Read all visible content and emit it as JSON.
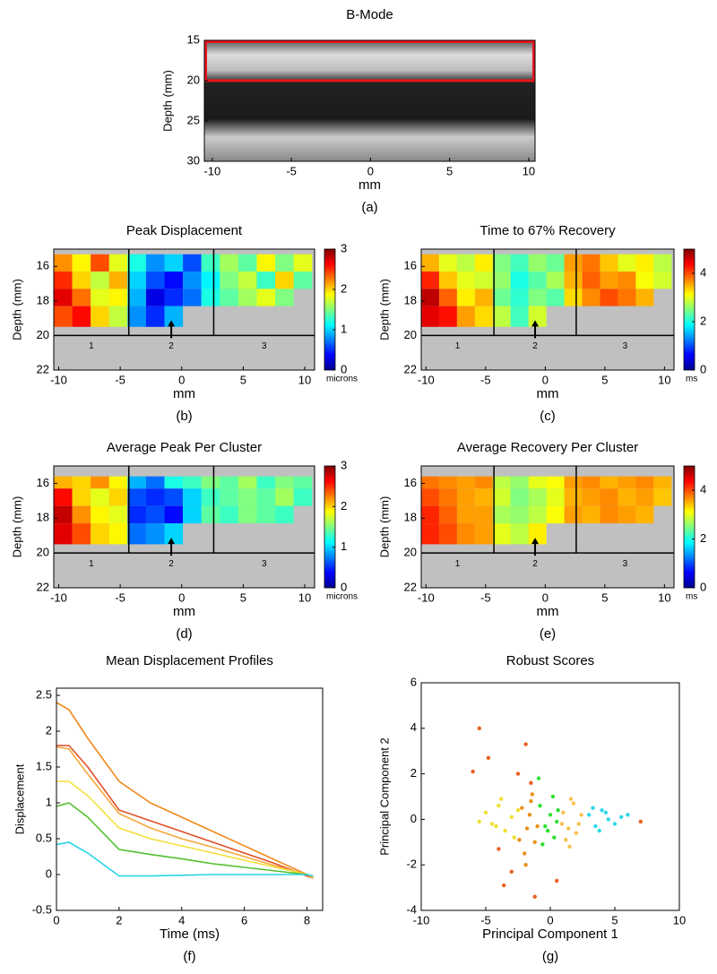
{
  "chart_data": [
    {
      "type": "image",
      "title": "B-Mode",
      "xlabel": "mm",
      "ylabel": "Depth (mm)",
      "panel_label": "(a)",
      "xlim": [
        -10.5,
        10.4
      ],
      "ylim": [
        15,
        30
      ],
      "y_reversed": true,
      "xticks": [
        -10,
        -5,
        0,
        5,
        10
      ],
      "yticks": [
        15,
        20,
        25,
        30
      ],
      "highlight_ylim": [
        15,
        20
      ],
      "highlight_color": "#e8141c"
    },
    {
      "type": "heatmap",
      "title": "Peak Displacement",
      "xlabel": "mm",
      "ylabel": "Depth (mm)",
      "panel_label": "(b)",
      "xlim": [
        -10.4,
        10.8
      ],
      "ylim": [
        15,
        22
      ],
      "y_reversed": true,
      "xticks": [
        -10,
        -5,
        0,
        5,
        10
      ],
      "yticks": [
        16,
        18,
        20,
        22
      ],
      "clim": [
        0,
        3
      ],
      "cticks": [
        0,
        1,
        2,
        3
      ],
      "clabel": "microns",
      "dividers_x": [
        -4.3,
        2.6
      ],
      "divider_y": 20,
      "regions": [
        "1",
        "2",
        "3"
      ],
      "x_edges": [
        -10.4,
        -8.9,
        -7.4,
        -5.9,
        -4.4,
        -2.9,
        -1.4,
        0.1,
        1.6,
        3.1,
        4.6,
        6.1,
        7.6,
        9.1,
        10.6
      ],
      "y_edges": [
        15.3,
        16.3,
        17.3,
        18.3,
        19.5
      ],
      "z": [
        [
          2.2,
          1.9,
          2.4,
          1.8,
          1.2,
          0.8,
          1.0,
          0.6,
          1.3,
          1.6,
          1.4,
          1.9,
          1.5,
          1.8
        ],
        [
          2.5,
          2.0,
          1.7,
          2.1,
          1.0,
          0.6,
          0.4,
          0.8,
          1.1,
          1.5,
          1.7,
          1.3,
          2.0,
          1.4
        ],
        [
          2.7,
          2.3,
          1.8,
          1.9,
          0.9,
          0.3,
          0.5,
          0.7,
          1.2,
          1.4,
          1.6,
          1.8,
          1.5,
          null
        ],
        [
          2.4,
          2.6,
          2.0,
          1.7,
          0.8,
          0.5,
          0.9,
          null,
          null,
          null,
          null,
          null,
          null,
          null
        ]
      ]
    },
    {
      "type": "heatmap",
      "title": "Time to 67% Recovery",
      "xlabel": "mm",
      "ylabel": "Depth (mm)",
      "panel_label": "(c)",
      "xlim": [
        -10.4,
        10.8
      ],
      "ylim": [
        15,
        22
      ],
      "y_reversed": true,
      "xticks": [
        -10,
        -5,
        0,
        5,
        10
      ],
      "yticks": [
        16,
        18,
        20,
        22
      ],
      "clim": [
        0,
        5
      ],
      "cticks": [
        0,
        2,
        4
      ],
      "clabel": "ms",
      "dividers_x": [
        -4.3,
        2.6
      ],
      "divider_y": 20,
      "regions": [
        "1",
        "2",
        "3"
      ],
      "x_edges": [
        -10.4,
        -8.9,
        -7.4,
        -5.9,
        -4.4,
        -2.9,
        -1.4,
        0.1,
        1.6,
        3.1,
        4.6,
        6.1,
        7.6,
        9.1,
        10.6
      ],
      "y_edges": [
        15.3,
        16.3,
        17.3,
        18.3,
        19.5
      ],
      "z": [
        [
          3.5,
          3.0,
          2.8,
          3.2,
          2.5,
          2.2,
          2.6,
          2.4,
          3.6,
          3.8,
          3.4,
          3.0,
          3.2,
          2.8
        ],
        [
          4.2,
          3.4,
          3.0,
          2.9,
          2.6,
          2.0,
          2.3,
          2.7,
          3.5,
          3.9,
          3.6,
          3.7,
          3.1,
          2.9
        ],
        [
          4.7,
          3.9,
          3.2,
          3.5,
          2.4,
          2.1,
          2.5,
          2.3,
          3.3,
          3.7,
          4.0,
          3.8,
          3.5,
          null
        ],
        [
          4.5,
          4.3,
          3.6,
          3.3,
          2.8,
          2.2,
          2.9,
          null,
          null,
          null,
          null,
          null,
          null,
          null
        ]
      ]
    },
    {
      "type": "heatmap",
      "title": "Average Peak Per Cluster",
      "xlabel": "mm",
      "ylabel": "Depth (mm)",
      "panel_label": "(d)",
      "xlim": [
        -10.4,
        10.8
      ],
      "ylim": [
        15,
        22
      ],
      "y_reversed": true,
      "xticks": [
        -10,
        -5,
        0,
        5,
        10
      ],
      "yticks": [
        16,
        18,
        20,
        22
      ],
      "clim": [
        0,
        3
      ],
      "cticks": [
        0,
        1,
        2,
        3
      ],
      "clabel": "microns",
      "dividers_x": [
        -4.3,
        2.6
      ],
      "divider_y": 20,
      "regions": [
        "1",
        "2",
        "3"
      ],
      "x_edges": [
        -10.4,
        -8.9,
        -7.4,
        -5.9,
        -4.4,
        -2.9,
        -1.4,
        0.1,
        1.6,
        3.1,
        4.6,
        6.1,
        7.6,
        9.1,
        10.6
      ],
      "y_edges": [
        15.6,
        16.3,
        17.3,
        18.3,
        19.5
      ],
      "z": [
        [
          2.1,
          2.0,
          2.2,
          1.9,
          0.9,
          0.7,
          1.2,
          1.3,
          1.5,
          1.4,
          1.6,
          1.3,
          1.5,
          1.4
        ],
        [
          2.6,
          2.0,
          1.8,
          2.0,
          0.6,
          0.5,
          0.6,
          1.0,
          1.3,
          1.4,
          1.5,
          1.4,
          1.6,
          1.3
        ],
        [
          2.8,
          2.2,
          1.9,
          1.8,
          0.5,
          0.6,
          0.4,
          1.0,
          1.4,
          1.3,
          1.5,
          1.4,
          1.3,
          null
        ],
        [
          2.7,
          2.4,
          2.0,
          1.9,
          0.7,
          0.8,
          1.0,
          null,
          null,
          null,
          null,
          null,
          null,
          null
        ]
      ]
    },
    {
      "type": "heatmap",
      "title": "Average Recovery Per Cluster",
      "xlabel": "mm",
      "ylabel": "Depth (mm)",
      "panel_label": "(e)",
      "xlim": [
        -10.4,
        10.8
      ],
      "ylim": [
        15,
        22
      ],
      "y_reversed": true,
      "xticks": [
        -10,
        -5,
        0,
        5,
        10
      ],
      "yticks": [
        16,
        18,
        20,
        22
      ],
      "clim": [
        0,
        5
      ],
      "cticks": [
        0,
        2,
        4
      ],
      "clabel": "ms",
      "dividers_x": [
        -4.3,
        2.6
      ],
      "divider_y": 20,
      "regions": [
        "1",
        "2",
        "3"
      ],
      "x_edges": [
        -10.4,
        -8.9,
        -7.4,
        -5.9,
        -4.4,
        -2.9,
        -1.4,
        0.1,
        1.6,
        3.1,
        4.6,
        6.1,
        7.6,
        9.1,
        10.6
      ],
      "y_edges": [
        15.6,
        16.3,
        17.3,
        18.3,
        19.5
      ],
      "z": [
        [
          3.8,
          3.7,
          3.6,
          3.7,
          2.8,
          2.6,
          3.0,
          3.1,
          3.6,
          3.7,
          3.5,
          3.6,
          3.7,
          3.5
        ],
        [
          4.0,
          3.8,
          3.6,
          3.5,
          2.9,
          2.5,
          2.7,
          3.0,
          3.5,
          3.6,
          3.7,
          3.5,
          3.6,
          3.4
        ],
        [
          4.2,
          3.9,
          3.6,
          3.6,
          2.7,
          2.6,
          2.8,
          3.1,
          3.6,
          3.5,
          3.7,
          3.6,
          3.5,
          null
        ],
        [
          4.2,
          4.0,
          3.7,
          3.6,
          3.0,
          2.8,
          3.2,
          null,
          null,
          null,
          null,
          null,
          null,
          null
        ]
      ]
    },
    {
      "type": "line",
      "title": "Mean Displacement Profiles",
      "xlabel": "Time (ms)",
      "ylabel": "Displacement",
      "panel_label": "(f)",
      "xlim": [
        0,
        8.5
      ],
      "ylim": [
        -0.5,
        2.6
      ],
      "xticks": [
        0,
        2,
        4,
        6,
        8
      ],
      "yticks": [
        -0.5,
        0,
        0.5,
        1,
        1.5,
        2,
        2.5
      ],
      "x": [
        0,
        0.4,
        1,
        2,
        3,
        4,
        5,
        6,
        7,
        8,
        8.2
      ],
      "series": [
        {
          "color": "#f08a1e",
          "values": [
            2.4,
            2.3,
            1.9,
            1.3,
            1.0,
            0.8,
            0.6,
            0.4,
            0.2,
            0.0,
            -0.05
          ]
        },
        {
          "color": "#e0502a",
          "values": [
            1.8,
            1.8,
            1.5,
            0.9,
            0.75,
            0.6,
            0.45,
            0.3,
            0.15,
            -0.02,
            -0.05
          ]
        },
        {
          "color": "#f6a83a",
          "values": [
            1.78,
            1.75,
            1.4,
            0.85,
            0.65,
            0.5,
            0.38,
            0.25,
            0.12,
            0,
            -0.05
          ]
        },
        {
          "color": "#f4e03a",
          "values": [
            1.3,
            1.3,
            1.1,
            0.65,
            0.5,
            0.4,
            0.3,
            0.2,
            0.1,
            0,
            -0.03
          ]
        },
        {
          "color": "#50c030",
          "values": [
            0.95,
            1.0,
            0.8,
            0.35,
            0.28,
            0.22,
            0.15,
            0.1,
            0.05,
            0,
            -0.02
          ]
        },
        {
          "color": "#2ad4e6",
          "values": [
            0.42,
            0.45,
            0.3,
            -0.02,
            -0.02,
            -0.01,
            0,
            0,
            0,
            0,
            -0.02
          ]
        }
      ]
    },
    {
      "type": "scatter",
      "title": "Robust Scores",
      "xlabel": "Principal Component 1",
      "ylabel": "Principal Component 2",
      "panel_label": "(g)",
      "xlim": [
        -10,
        10
      ],
      "ylim": [
        -4,
        6
      ],
      "xticks": [
        -10,
        -5,
        0,
        5,
        10
      ],
      "yticks": [
        -4,
        -2,
        0,
        2,
        4,
        6
      ],
      "series": [
        {
          "color": "#f0e030",
          "x": [
            -5,
            -4.5,
            -4,
            -3.5,
            -3,
            -2.8,
            -4.2,
            -3.8,
            -2.5,
            -5.5
          ],
          "values": [
            0.3,
            -0.2,
            0.6,
            -0.5,
            0.1,
            -0.8,
            -0.3,
            0.9,
            0.4,
            -0.1
          ]
        },
        {
          "color": "#e8901a",
          "x": [
            -2.2,
            -1.8,
            -1.5,
            -1.2,
            -2.0,
            -1.6,
            -1.0,
            -2.4,
            -1.4,
            -1.9
          ],
          "values": [
            0.5,
            -0.4,
            0.8,
            -1.0,
            -1.5,
            0.2,
            -0.3,
            -0.9,
            1.1,
            -2.0
          ]
        },
        {
          "color": "#30e030",
          "x": [
            -0.8,
            -0.4,
            0,
            0.3,
            0.6,
            -0.6,
            0.2,
            -0.2,
            0.5,
            -0.9
          ],
          "values": [
            0.6,
            -0.3,
            0.2,
            -0.8,
            0.4,
            -1.1,
            1.0,
            -0.5,
            -0.1,
            1.8
          ]
        },
        {
          "color": "#f8c050",
          "x": [
            1.0,
            1.4,
            1.8,
            2.2,
            1.2,
            1.6,
            2.0,
            2.4,
            0.9,
            1.5
          ],
          "values": [
            0.3,
            -0.4,
            0.7,
            -0.2,
            -0.9,
            0.9,
            -0.6,
            0.2,
            -0.2,
            -1.2
          ]
        },
        {
          "color": "#30d8e8",
          "x": [
            3.0,
            3.5,
            4.0,
            4.5,
            5.0,
            3.3,
            3.8,
            4.3,
            5.5,
            6.0
          ],
          "values": [
            0.2,
            -0.3,
            0.4,
            0,
            -0.2,
            0.5,
            -0.5,
            0.3,
            0.1,
            0.2
          ]
        },
        {
          "color": "#e86020",
          "x": [
            -5.5,
            -4.8,
            -2.5,
            -1.9,
            -1.5,
            -4.0,
            -3.0,
            -1.2,
            -6.0,
            -3.6,
            0.5,
            7.0
          ],
          "values": [
            4.0,
            2.7,
            2.0,
            3.3,
            1.6,
            -1.3,
            -2.3,
            -3.4,
            2.1,
            -2.9,
            -2.7,
            -0.1
          ]
        }
      ]
    }
  ]
}
